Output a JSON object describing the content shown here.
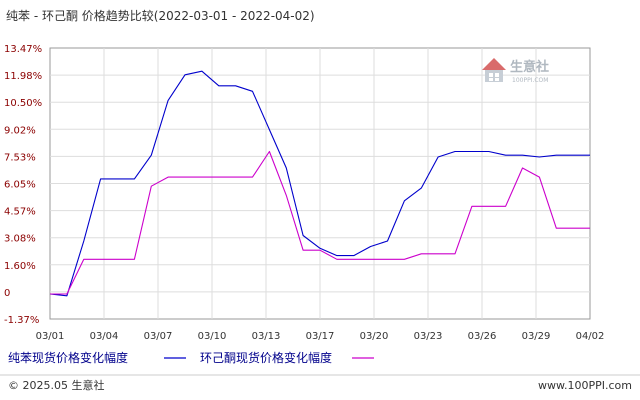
{
  "chart_data": {
    "type": "line",
    "title": "纯苯 - 环己酮 价格趋势比较(2022-03-01 - 2022-04-02)",
    "x": [
      "03/01",
      "03/02",
      "03/03",
      "03/04",
      "03/05",
      "03/06",
      "03/07",
      "03/08",
      "03/09",
      "03/10",
      "03/11",
      "03/12",
      "03/13",
      "03/14",
      "03/15",
      "03/16",
      "03/17",
      "03/18",
      "03/19",
      "03/20",
      "03/21",
      "03/22",
      "03/23",
      "03/24",
      "03/25",
      "03/26",
      "03/27",
      "03/28",
      "03/29",
      "03/30",
      "03/31",
      "04/01",
      "04/02"
    ],
    "x_tick_labels": [
      "03/01",
      "03/04",
      "03/07",
      "03/10",
      "03/13",
      "03/17",
      "03/20",
      "03/23",
      "03/26",
      "03/29",
      "04/02"
    ],
    "y_tick_labels": [
      "13.47%",
      "11.98%",
      "10.50%",
      "9.02%",
      "7.53%",
      "6.05%",
      "4.57%",
      "3.08%",
      "1.60%",
      "0",
      "-1.37%"
    ],
    "ylim": [
      -1.37,
      13.47
    ],
    "grid": true,
    "legend_position": "bottom-left",
    "series": [
      {
        "name": "纯苯现货价格变化幅度",
        "color": "#0000cc",
        "values": [
          0,
          -0.1,
          2.9,
          6.3,
          6.3,
          6.3,
          7.6,
          10.6,
          12.0,
          12.2,
          11.4,
          11.4,
          11.1,
          9.0,
          6.9,
          3.2,
          2.5,
          2.1,
          2.1,
          2.6,
          2.9,
          5.1,
          5.8,
          7.5,
          7.8,
          7.8,
          7.8,
          7.6,
          7.6,
          7.5,
          7.6,
          7.6,
          7.6
        ]
      },
      {
        "name": "环己酮现货价格变化幅度",
        "color": "#cc00cc",
        "values": [
          0,
          0,
          1.9,
          1.9,
          1.9,
          1.9,
          5.9,
          6.4,
          6.4,
          6.4,
          6.4,
          6.4,
          6.4,
          7.8,
          5.4,
          2.4,
          2.4,
          1.9,
          1.9,
          1.9,
          1.9,
          1.9,
          2.2,
          2.2,
          2.2,
          4.8,
          4.8,
          4.8,
          6.9,
          6.4,
          3.6,
          3.6,
          3.6
        ]
      }
    ]
  },
  "footer": {
    "copyright": "© 2025.05 生意社",
    "site": "www.100PPI.com"
  },
  "watermark": {
    "name": "生意社",
    "sub": "100PPI.COM",
    "icon": "house-logo-icon"
  }
}
